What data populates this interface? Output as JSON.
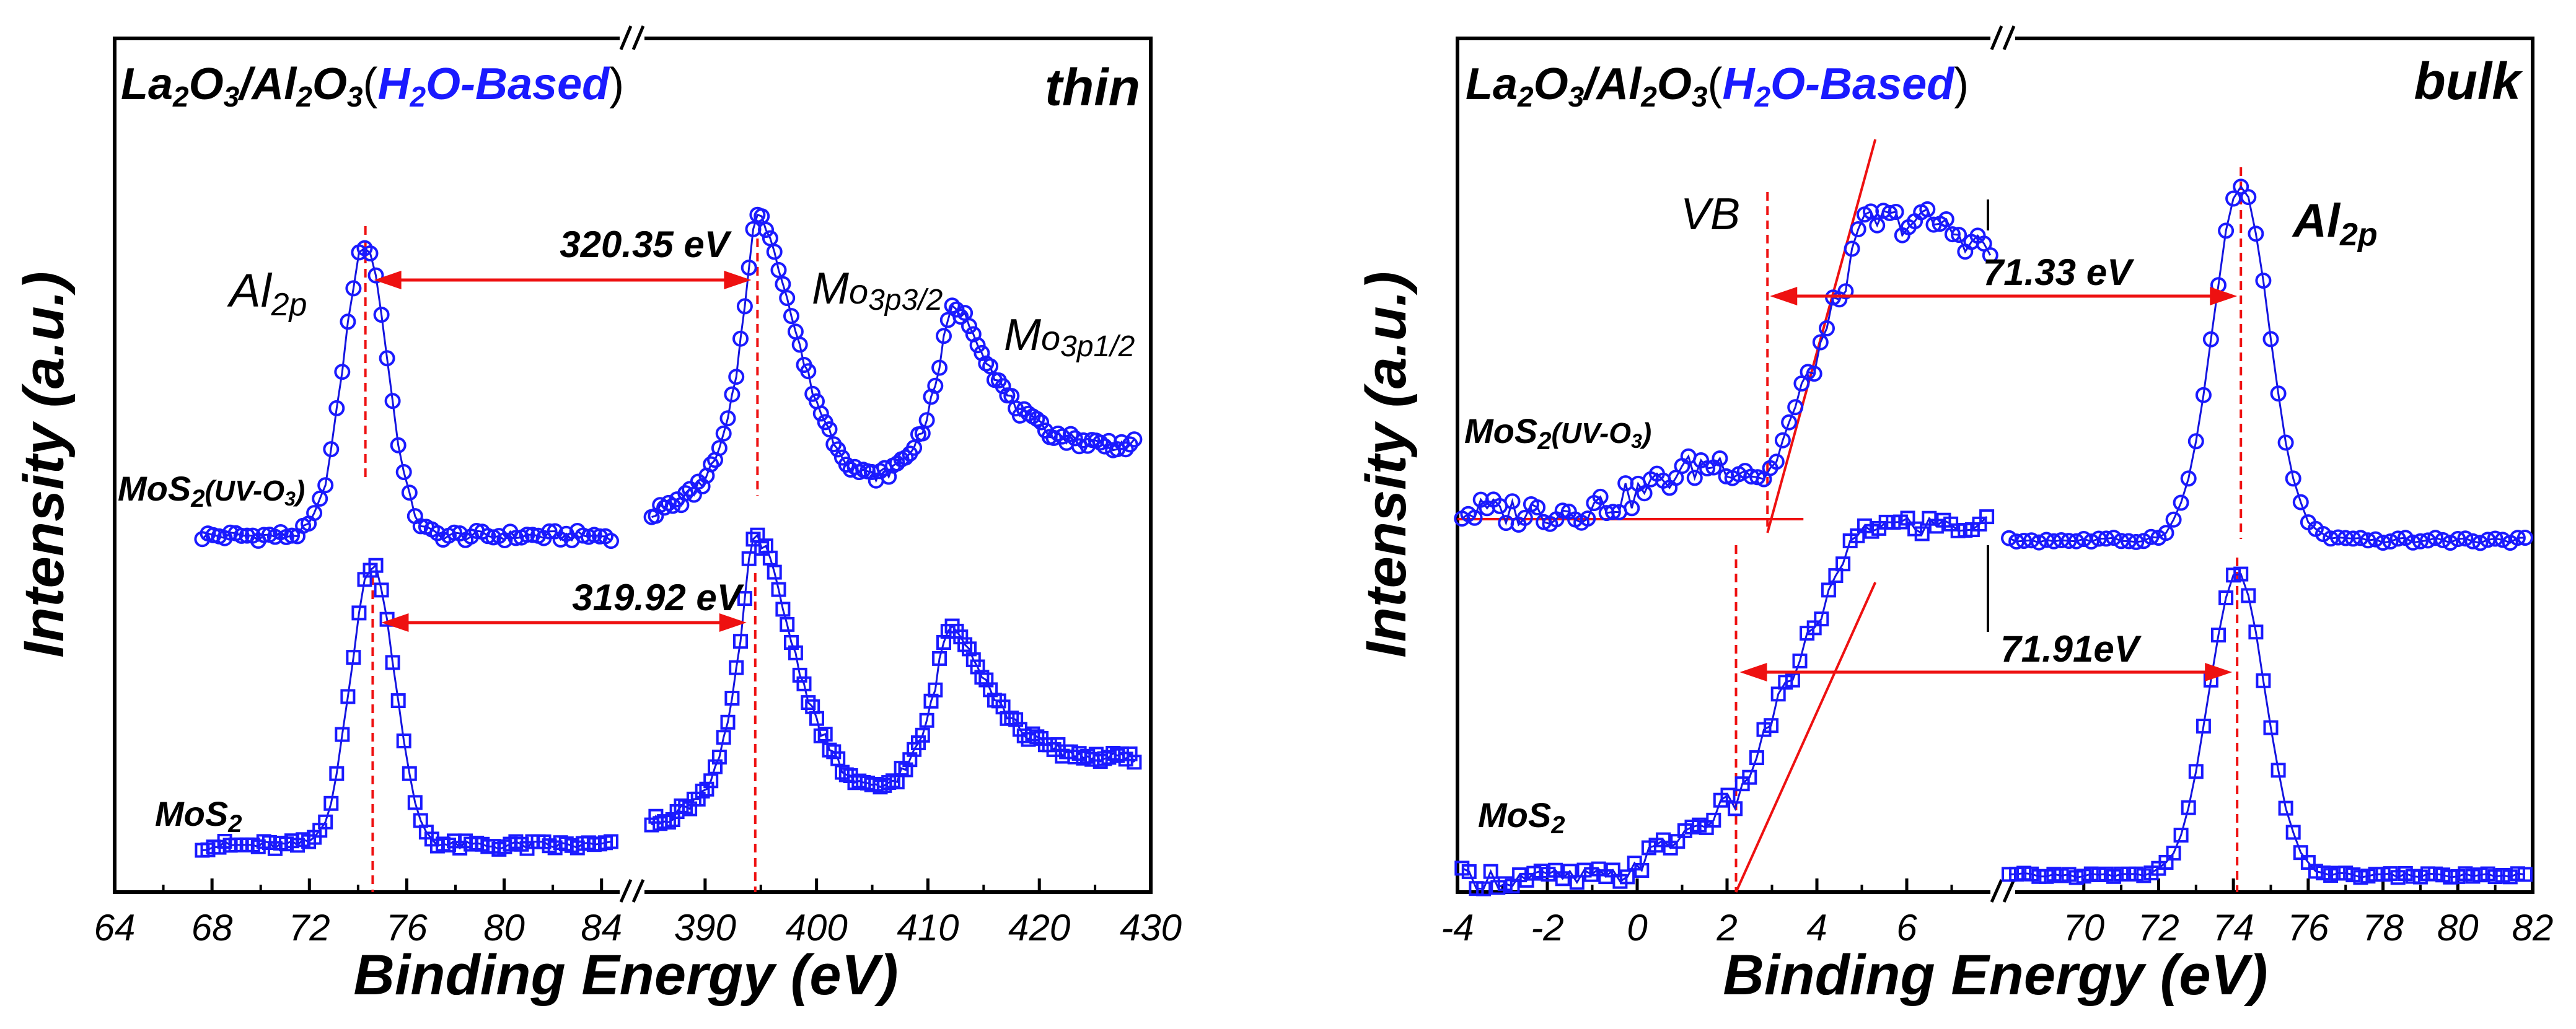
{
  "chart_data": [
    {
      "type": "scatter",
      "panel": "thin",
      "title_left": {
        "a": "La",
        "s1": "2",
        "b": "O",
        "s2": "3",
        "c": "/Al",
        "s3": "2",
        "d": "O",
        "s4": "3",
        "e": "(",
        "f": "H",
        "s5": "2",
        "g": "O-Based",
        "h": ")"
      },
      "title_right": "thin",
      "xlabel": "Binding Energy (eV)",
      "ylabel": "Intensity (a.u.)",
      "segments": [
        {
          "xlim": [
            64,
            85
          ],
          "ticks": [
            "64",
            "68",
            "72",
            "76",
            "80",
            "84"
          ],
          "tick_values": [
            64,
            68,
            72,
            76,
            80,
            84
          ]
        },
        {
          "xlim": [
            384,
            430
          ],
          "ticks": [
            "390",
            "400",
            "410",
            "420",
            "430"
          ],
          "tick_values": [
            390,
            400,
            410,
            420,
            430
          ]
        }
      ],
      "series": [
        {
          "name": "MoS2(UV-O3)",
          "marker": "circle",
          "level": "upper",
          "peaks_al": [
            {
              "center": 74.3,
              "height": 1.0,
              "width": 0.9
            }
          ],
          "peaks_mo": [
            {
              "center": 394.7,
              "height": 1.0,
              "width": 1.8
            },
            {
              "center": 412.3,
              "height": 0.55,
              "width": 1.8
            }
          ]
        },
        {
          "name": "MoS2",
          "marker": "square",
          "level": "lower",
          "peaks_al": [
            {
              "center": 74.6,
              "height": 1.0,
              "width": 0.9
            }
          ],
          "peaks_mo": [
            {
              "center": 394.5,
              "height": 1.0,
              "width": 1.8
            },
            {
              "center": 412.0,
              "height": 0.55,
              "width": 1.8
            }
          ]
        }
      ],
      "annotations": {
        "peak_al": {
          "main": "Al",
          "sub": "2p"
        },
        "peak_mo1": {
          "main": "M",
          "small": "o",
          "sub": "3p3/2"
        },
        "peak_mo2": {
          "main": "M",
          "small": "o",
          "sub": "3p1/2"
        },
        "series_upper": {
          "main": "MoS",
          "sub1": "2",
          "paren": "(UV-O",
          "sub2": "3",
          "close": ")"
        },
        "series_lower": {
          "main": "MoS",
          "sub1": "2"
        },
        "arrow_upper": {
          "label": "320.35 eV",
          "from": 74.3,
          "to": 394.7
        },
        "arrow_lower": {
          "label": "319.92 eV",
          "from": 74.6,
          "to": 394.5
        }
      }
    },
    {
      "type": "scatter",
      "panel": "bulk",
      "title_left": {
        "a": "La",
        "s1": "2",
        "b": "O",
        "s2": "3",
        "c": "/Al",
        "s3": "2",
        "d": "O",
        "s4": "3",
        "e": "(",
        "f": "H",
        "s5": "2",
        "g": "O-Based",
        "h": ")"
      },
      "title_right": "bulk",
      "xlabel": "Binding Energy (eV)",
      "ylabel": "Intensity (a.u.)",
      "segments": [
        {
          "xlim": [
            -4,
            8
          ],
          "ticks": [
            "-4",
            "-2",
            "0",
            "2",
            "4",
            "6"
          ],
          "tick_values": [
            -4,
            -2,
            0,
            2,
            4,
            6
          ]
        },
        {
          "xlim": [
            68,
            82
          ],
          "ticks": [
            "70",
            "72",
            "74",
            "76",
            "78",
            "80",
            "82"
          ],
          "tick_values": [
            70,
            72,
            74,
            76,
            78,
            80,
            82
          ]
        }
      ],
      "series": [
        {
          "name": "MoS2(UV-O3)",
          "marker": "circle",
          "level": "upper",
          "vb_edge": 2.9,
          "al_peak": 74.2
        },
        {
          "name": "MoS2",
          "marker": "square",
          "level": "lower",
          "vb_edge": 2.2,
          "al_peak": 74.1
        }
      ],
      "annotations": {
        "vb_label": "VB",
        "peak_al": {
          "main": "Al",
          "sub": "2p"
        },
        "series_upper": {
          "main": "MoS",
          "sub1": "2",
          "paren": "(UV-O",
          "sub2": "3",
          "close": ")"
        },
        "series_lower": {
          "main": "MoS",
          "sub1": "2"
        },
        "arrow_upper": {
          "label": "71.33 eV",
          "from": 2.9,
          "to": 74.2
        },
        "arrow_lower": {
          "label": "71.91eV",
          "from": 2.2,
          "to": 74.1
        }
      }
    }
  ],
  "colors": {
    "data": "#1414e0",
    "marker_line": "#1a1aff",
    "guide": "#ee1111",
    "axis": "#000000",
    "highlight": "#1a1aff"
  }
}
